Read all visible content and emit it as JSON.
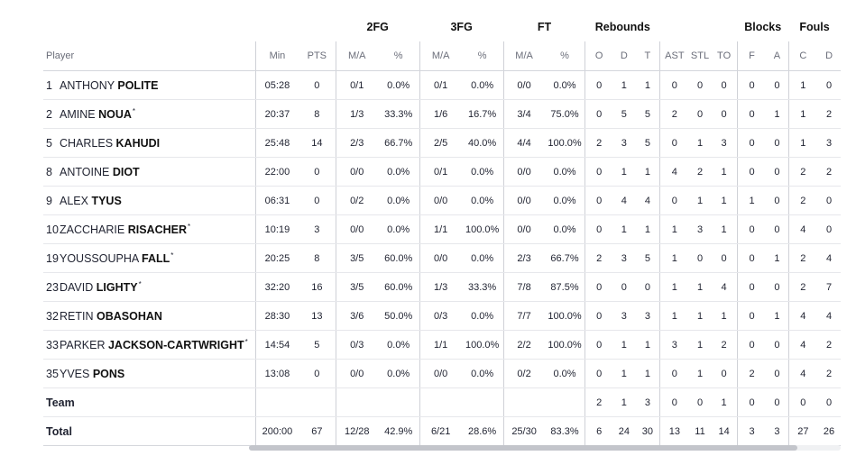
{
  "groups": {
    "fg2": "2FG",
    "fg3": "3FG",
    "ft": "FT",
    "rebounds": "Rebounds",
    "blocks": "Blocks",
    "fouls": "Fouls"
  },
  "columns": {
    "player": "Player",
    "min": "Min",
    "pts": "PTS",
    "fg2_ma": "M/A",
    "fg2_pct": "%",
    "fg3_ma": "M/A",
    "fg3_pct": "%",
    "ft_ma": "M/A",
    "ft_pct": "%",
    "reb_o": "O",
    "reb_d": "D",
    "reb_t": "T",
    "ast": "AST",
    "stl": "STL",
    "to": "TO",
    "blk_f": "F",
    "blk_a": "A",
    "foul_c": "C",
    "foul_d": "D"
  },
  "players": [
    {
      "num": "1",
      "first": "ANTHONY",
      "last": "POLITE",
      "star": "",
      "min": "05:28",
      "pts": "0",
      "fg2_ma": "0/1",
      "fg2_pct": "0.0%",
      "fg3_ma": "0/1",
      "fg3_pct": "0.0%",
      "ft_ma": "0/0",
      "ft_pct": "0.0%",
      "reb_o": "0",
      "reb_d": "1",
      "reb_t": "1",
      "ast": "0",
      "stl": "0",
      "to": "0",
      "blk_f": "0",
      "blk_a": "0",
      "foul_c": "1",
      "foul_d": "0"
    },
    {
      "num": "2",
      "first": "AMINE",
      "last": "NOUA",
      "star": "*",
      "min": "20:37",
      "pts": "8",
      "fg2_ma": "1/3",
      "fg2_pct": "33.3%",
      "fg3_ma": "1/6",
      "fg3_pct": "16.7%",
      "ft_ma": "3/4",
      "ft_pct": "75.0%",
      "reb_o": "0",
      "reb_d": "5",
      "reb_t": "5",
      "ast": "2",
      "stl": "0",
      "to": "0",
      "blk_f": "0",
      "blk_a": "1",
      "foul_c": "1",
      "foul_d": "2"
    },
    {
      "num": "5",
      "first": "CHARLES",
      "last": "KAHUDI",
      "star": "",
      "min": "25:48",
      "pts": "14",
      "fg2_ma": "2/3",
      "fg2_pct": "66.7%",
      "fg3_ma": "2/5",
      "fg3_pct": "40.0%",
      "ft_ma": "4/4",
      "ft_pct": "100.0%",
      "reb_o": "2",
      "reb_d": "3",
      "reb_t": "5",
      "ast": "0",
      "stl": "1",
      "to": "3",
      "blk_f": "0",
      "blk_a": "0",
      "foul_c": "1",
      "foul_d": "3"
    },
    {
      "num": "8",
      "first": "ANTOINE",
      "last": "DIOT",
      "star": "",
      "min": "22:00",
      "pts": "0",
      "fg2_ma": "0/0",
      "fg2_pct": "0.0%",
      "fg3_ma": "0/1",
      "fg3_pct": "0.0%",
      "ft_ma": "0/0",
      "ft_pct": "0.0%",
      "reb_o": "0",
      "reb_d": "1",
      "reb_t": "1",
      "ast": "4",
      "stl": "2",
      "to": "1",
      "blk_f": "0",
      "blk_a": "0",
      "foul_c": "2",
      "foul_d": "2"
    },
    {
      "num": "9",
      "first": "ALEX",
      "last": "TYUS",
      "star": "",
      "min": "06:31",
      "pts": "0",
      "fg2_ma": "0/2",
      "fg2_pct": "0.0%",
      "fg3_ma": "0/0",
      "fg3_pct": "0.0%",
      "ft_ma": "0/0",
      "ft_pct": "0.0%",
      "reb_o": "0",
      "reb_d": "4",
      "reb_t": "4",
      "ast": "0",
      "stl": "1",
      "to": "1",
      "blk_f": "1",
      "blk_a": "0",
      "foul_c": "2",
      "foul_d": "0"
    },
    {
      "num": "10",
      "first": "ZACCHARIE",
      "last": "RISACHER",
      "star": "*",
      "min": "10:19",
      "pts": "3",
      "fg2_ma": "0/0",
      "fg2_pct": "0.0%",
      "fg3_ma": "1/1",
      "fg3_pct": "100.0%",
      "ft_ma": "0/0",
      "ft_pct": "0.0%",
      "reb_o": "0",
      "reb_d": "1",
      "reb_t": "1",
      "ast": "1",
      "stl": "3",
      "to": "1",
      "blk_f": "0",
      "blk_a": "0",
      "foul_c": "4",
      "foul_d": "0"
    },
    {
      "num": "19",
      "first": "YOUSSOUPHA",
      "last": "FALL",
      "star": "*",
      "min": "20:25",
      "pts": "8",
      "fg2_ma": "3/5",
      "fg2_pct": "60.0%",
      "fg3_ma": "0/0",
      "fg3_pct": "0.0%",
      "ft_ma": "2/3",
      "ft_pct": "66.7%",
      "reb_o": "2",
      "reb_d": "3",
      "reb_t": "5",
      "ast": "1",
      "stl": "0",
      "to": "0",
      "blk_f": "0",
      "blk_a": "1",
      "foul_c": "2",
      "foul_d": "4"
    },
    {
      "num": "23",
      "first": "DAVID",
      "last": "LIGHTY",
      "star": "*",
      "min": "32:20",
      "pts": "16",
      "fg2_ma": "3/5",
      "fg2_pct": "60.0%",
      "fg3_ma": "1/3",
      "fg3_pct": "33.3%",
      "ft_ma": "7/8",
      "ft_pct": "87.5%",
      "reb_o": "0",
      "reb_d": "0",
      "reb_t": "0",
      "ast": "1",
      "stl": "1",
      "to": "4",
      "blk_f": "0",
      "blk_a": "0",
      "foul_c": "2",
      "foul_d": "7"
    },
    {
      "num": "32",
      "first": "RETIN",
      "last": "OBASOHAN",
      "star": "",
      "min": "28:30",
      "pts": "13",
      "fg2_ma": "3/6",
      "fg2_pct": "50.0%",
      "fg3_ma": "0/3",
      "fg3_pct": "0.0%",
      "ft_ma": "7/7",
      "ft_pct": "100.0%",
      "reb_o": "0",
      "reb_d": "3",
      "reb_t": "3",
      "ast": "1",
      "stl": "1",
      "to": "1",
      "blk_f": "0",
      "blk_a": "1",
      "foul_c": "4",
      "foul_d": "4"
    },
    {
      "num": "33",
      "first": "PARKER",
      "last": "JACKSON-CARTWRIGHT",
      "star": "*",
      "min": "14:54",
      "pts": "5",
      "fg2_ma": "0/3",
      "fg2_pct": "0.0%",
      "fg3_ma": "1/1",
      "fg3_pct": "100.0%",
      "ft_ma": "2/2",
      "ft_pct": "100.0%",
      "reb_o": "0",
      "reb_d": "1",
      "reb_t": "1",
      "ast": "3",
      "stl": "1",
      "to": "2",
      "blk_f": "0",
      "blk_a": "0",
      "foul_c": "4",
      "foul_d": "2"
    },
    {
      "num": "35",
      "first": "YVES",
      "last": "PONS",
      "star": "",
      "min": "13:08",
      "pts": "0",
      "fg2_ma": "0/0",
      "fg2_pct": "0.0%",
      "fg3_ma": "0/0",
      "fg3_pct": "0.0%",
      "ft_ma": "0/2",
      "ft_pct": "0.0%",
      "reb_o": "0",
      "reb_d": "1",
      "reb_t": "1",
      "ast": "0",
      "stl": "1",
      "to": "0",
      "blk_f": "2",
      "blk_a": "0",
      "foul_c": "4",
      "foul_d": "2"
    }
  ],
  "team": {
    "label": "Team",
    "reb_o": "2",
    "reb_d": "1",
    "reb_t": "3",
    "ast": "0",
    "stl": "0",
    "to": "1",
    "blk_f": "0",
    "blk_a": "0",
    "foul_c": "0",
    "foul_d": "0"
  },
  "total": {
    "label": "Total",
    "min": "200:00",
    "pts": "67",
    "fg2_ma": "12/28",
    "fg2_pct": "42.9%",
    "fg3_ma": "6/21",
    "fg3_pct": "28.6%",
    "ft_ma": "25/30",
    "ft_pct": "83.3%",
    "reb_o": "6",
    "reb_d": "24",
    "reb_t": "30",
    "ast": "13",
    "stl": "11",
    "to": "14",
    "blk_f": "3",
    "blk_a": "3",
    "foul_c": "27",
    "foul_d": "26"
  }
}
